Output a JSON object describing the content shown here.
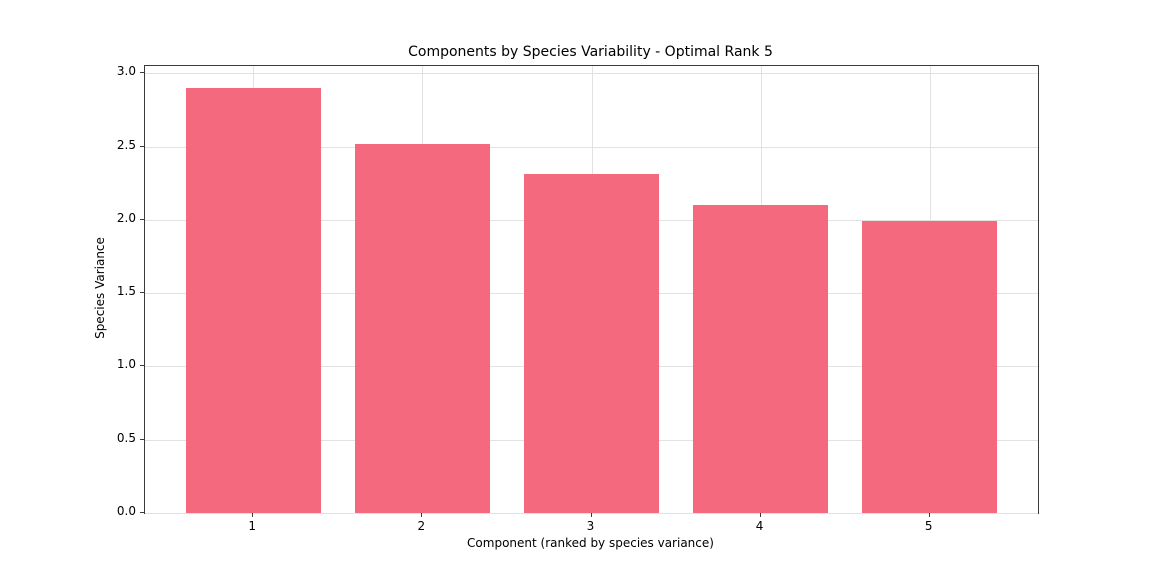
{
  "chart_data": {
    "type": "bar",
    "title": "Components by Species Variability - Optimal Rank 5",
    "xlabel": "Component (ranked by species variance)",
    "ylabel": "Species Variance",
    "categories": [
      "1",
      "2",
      "3",
      "4",
      "5"
    ],
    "values": [
      2.9,
      2.52,
      2.31,
      2.1,
      1.99
    ],
    "bar_color": "#f5697f",
    "bar_width_data_units": 0.8,
    "xlim": [
      0.36,
      5.64
    ],
    "ylim": [
      0,
      3.05
    ],
    "yticks": [
      0.0,
      0.5,
      1.0,
      1.5,
      2.0,
      2.5,
      3.0
    ],
    "ytick_labels": [
      "0.0",
      "0.5",
      "1.0",
      "1.5",
      "2.0",
      "2.5",
      "3.0"
    ],
    "grid": true,
    "grid_color": "#e2e2e2",
    "legend_position": "none",
    "background_color": "#ffffff"
  }
}
